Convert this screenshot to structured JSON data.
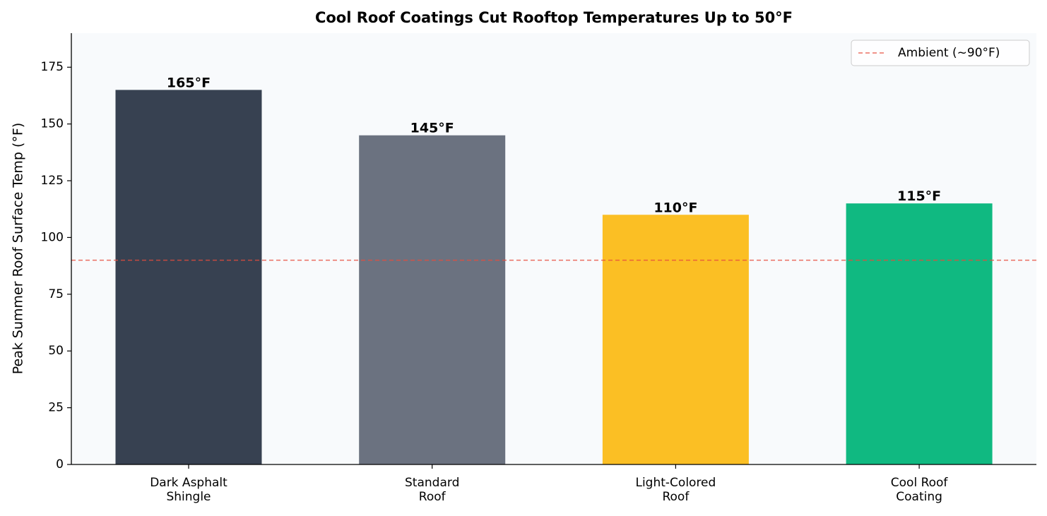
{
  "chart_data": {
    "type": "bar",
    "title": "Cool Roof Coatings Cut Rooftop Temperatures Up to 50°F",
    "y_label": "Peak Summer Roof Surface Temp (°F)",
    "categories": [
      "Dark Asphalt\nShingle",
      "Standard\nRoof",
      "Light-Colored\nRoof",
      "Cool Roof\nCoating"
    ],
    "values": [
      165,
      145,
      110,
      115
    ],
    "value_labels": [
      "165°F",
      "145°F",
      "110°F",
      "115°F"
    ],
    "colors": [
      "#374151",
      "#6b7280",
      "#fbbf24",
      "#10b981"
    ],
    "ylim": [
      0,
      190
    ],
    "yticks": [
      0,
      25,
      50,
      75,
      100,
      125,
      150,
      175
    ],
    "reference_line": {
      "value": 90,
      "label": "Ambient (~90°F)",
      "color": "#e74c3c"
    },
    "legend": "upper right",
    "grid": false
  }
}
